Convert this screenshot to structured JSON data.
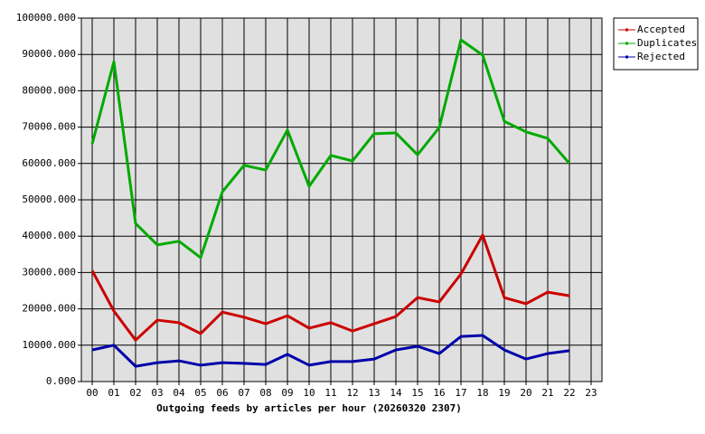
{
  "chart_data": {
    "type": "line",
    "x_label": "Outgoing feeds by articles per hour (20260320 2307)",
    "categories": [
      "00",
      "01",
      "02",
      "03",
      "04",
      "05",
      "06",
      "07",
      "08",
      "09",
      "10",
      "11",
      "12",
      "13",
      "14",
      "15",
      "16",
      "17",
      "18",
      "19",
      "20",
      "21",
      "22",
      "23"
    ],
    "series": [
      {
        "name": "Accepted",
        "color": "#cc0000",
        "values": [
          30500,
          19400,
          11400,
          16900,
          16200,
          13200,
          19100,
          17700,
          15900,
          18100,
          14700,
          16200,
          13900,
          15900,
          17900,
          23100,
          21900,
          29600,
          40300,
          23100,
          21400,
          24600,
          23600,
          null
        ]
      },
      {
        "name": "Duplicates",
        "color": "#00aa00",
        "values": [
          65400,
          88000,
          43500,
          37600,
          38600,
          34100,
          52200,
          59500,
          58200,
          69200,
          53700,
          62200,
          60700,
          68200,
          68400,
          62400,
          69900,
          94000,
          89800,
          71600,
          68700,
          66900,
          60000,
          null
        ]
      },
      {
        "name": "Rejected",
        "color": "#0000aa",
        "values": [
          8700,
          10000,
          4200,
          5200,
          5700,
          4500,
          5200,
          5000,
          4700,
          7500,
          4500,
          5500,
          5500,
          6200,
          8700,
          9700,
          7700,
          12400,
          12700,
          8700,
          6200,
          7700,
          8500,
          null
        ]
      }
    ],
    "ylim": [
      0,
      100000
    ],
    "yticks": [
      {
        "value": 0,
        "label": "0.000"
      },
      {
        "value": 10000,
        "label": "10000.000"
      },
      {
        "value": 20000,
        "label": "20000.000"
      },
      {
        "value": 30000,
        "label": "30000.000"
      },
      {
        "value": 40000,
        "label": "40000.000"
      },
      {
        "value": 50000,
        "label": "50000.000"
      },
      {
        "value": 60000,
        "label": "60000.000"
      },
      {
        "value": 70000,
        "label": "70000.000"
      },
      {
        "value": 80000,
        "label": "80000.000"
      },
      {
        "value": 90000,
        "label": "90000.000"
      },
      {
        "value": 100000,
        "label": "100000.000"
      }
    ],
    "grid": true,
    "legend": "top-right",
    "background": "#e0e0e0"
  }
}
